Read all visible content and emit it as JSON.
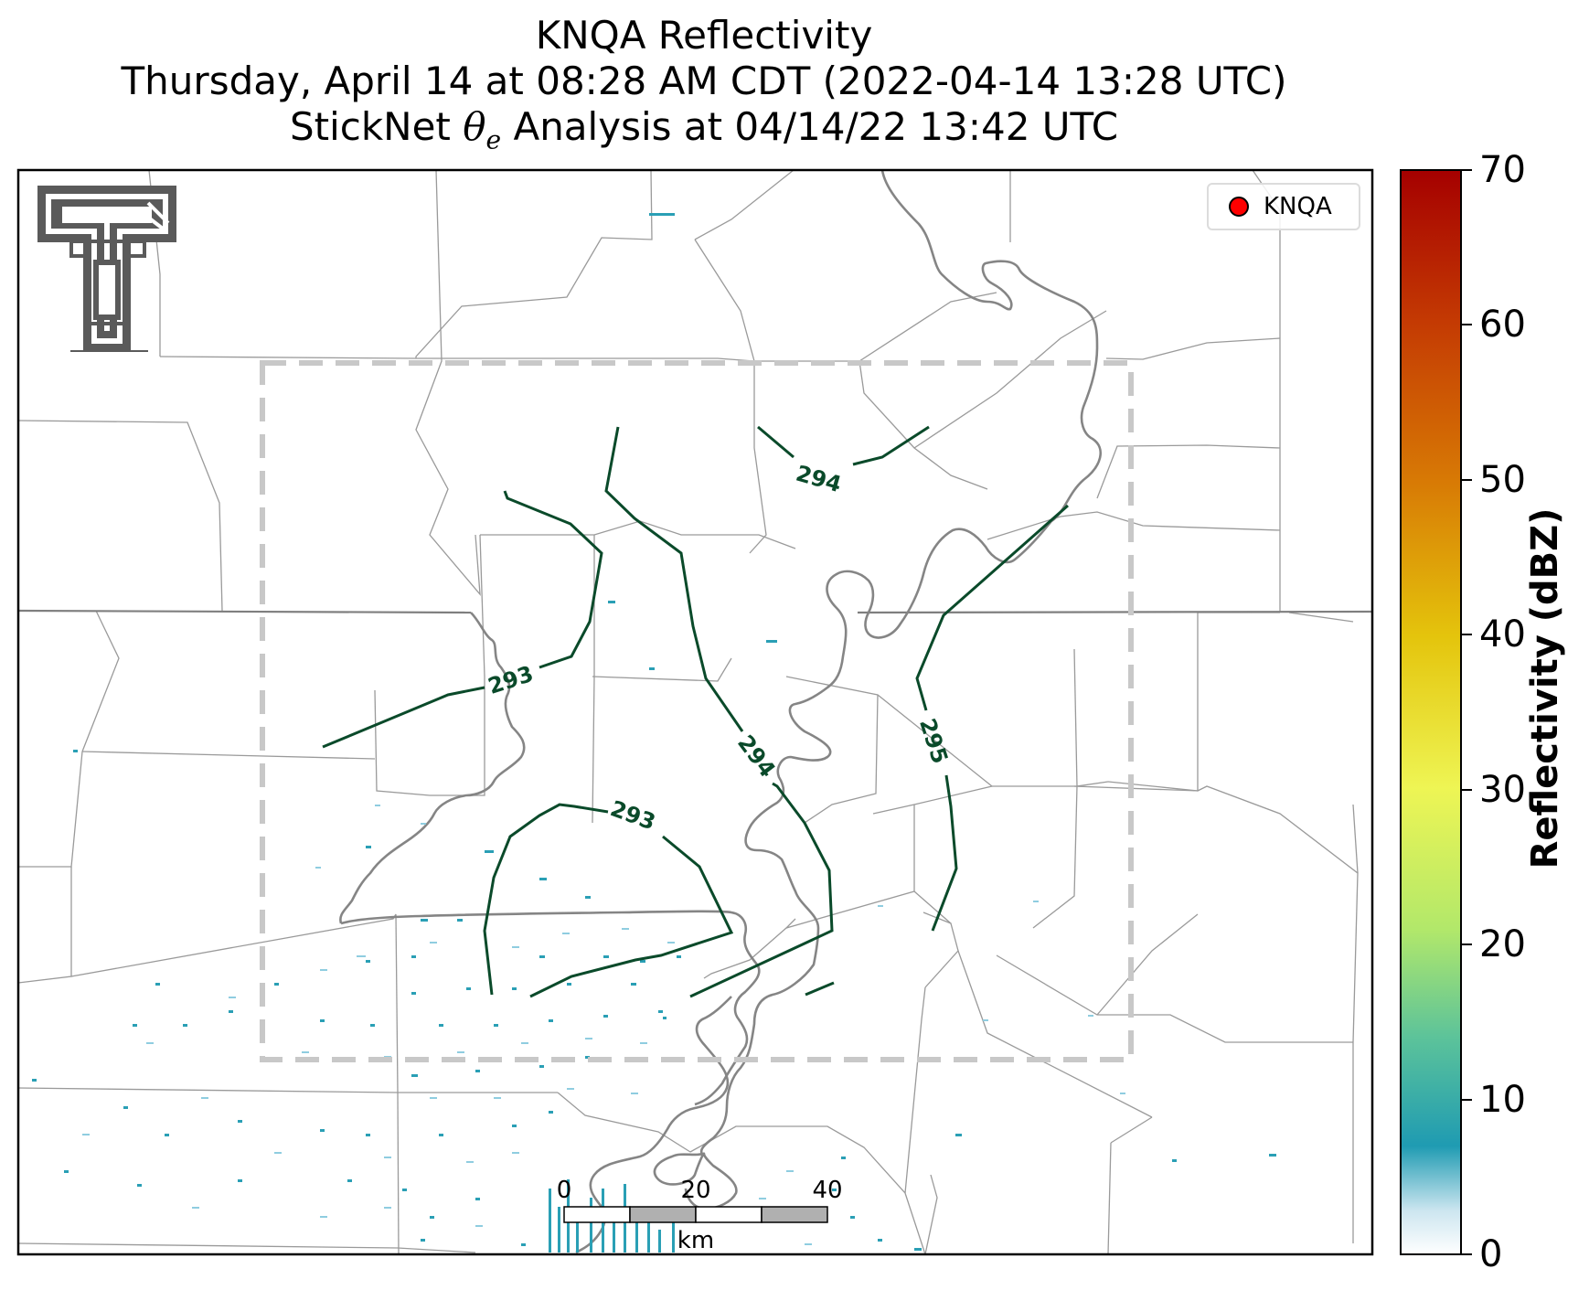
{
  "title": {
    "line1": "KNQA Reflectivity",
    "line2": "Thursday, April 14 at 08:28 AM CDT (2022-04-14 13:28 UTC)",
    "line3_prefix": "StickNet ",
    "line3_symbol": "θ",
    "line3_sub": "e",
    "line3_suffix": " Analysis at 04/14/22 13:42 UTC"
  },
  "legend": {
    "label": "KNQA",
    "marker_color": "#ff0000"
  },
  "colorbar": {
    "label": "Reflectivity (dBZ)",
    "ticks": [
      "70",
      "60",
      "50",
      "40",
      "30",
      "20",
      "10",
      "0"
    ],
    "colors": [
      "#ffffff",
      "#1f9bb2",
      "#5cc39a",
      "#b2e86a",
      "#eef554",
      "#e4c40c",
      "#d87b05",
      "#c43a03",
      "#a50000"
    ]
  },
  "scalebar": {
    "ticks": [
      "0",
      "20",
      "40"
    ],
    "unit": "km"
  },
  "contours": {
    "labels": [
      "294",
      "293",
      "294",
      "293",
      "295"
    ],
    "color": "#0a4a2a"
  },
  "logo": {
    "name": "texas-tech-double-t-logo"
  }
}
